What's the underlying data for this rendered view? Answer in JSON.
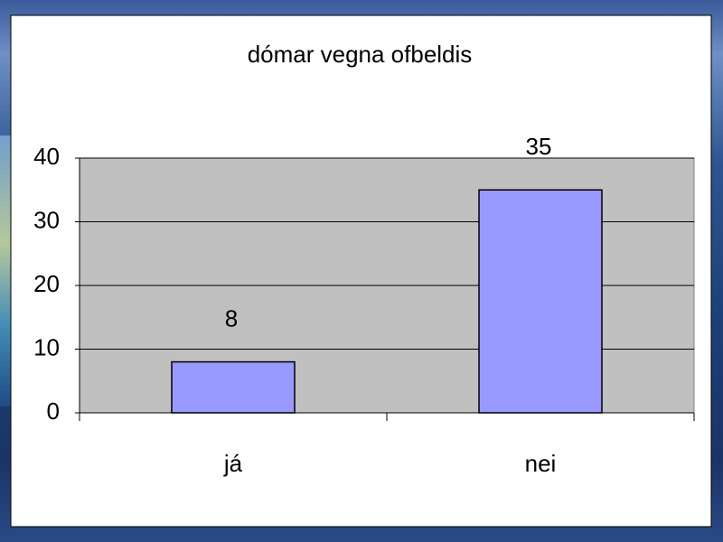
{
  "chart_data": {
    "type": "bar",
    "title": "dómar vegna ofbeldis",
    "categories": [
      "já",
      "nei"
    ],
    "values": [
      8,
      35
    ],
    "color": "#9999ff",
    "ylim": [
      0,
      40
    ],
    "yticks": [
      0,
      10,
      20,
      30,
      40
    ],
    "grid": true,
    "data_labels": true
  }
}
